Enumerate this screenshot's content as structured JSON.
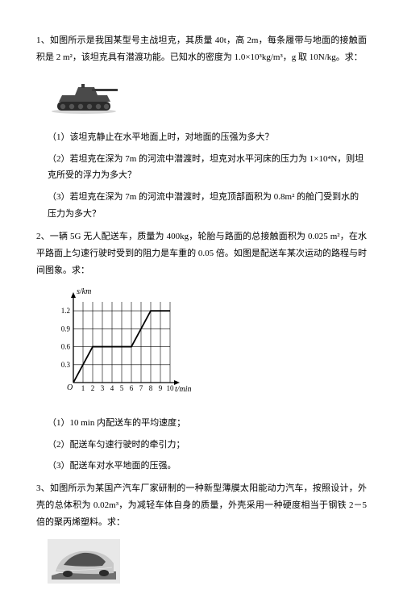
{
  "q1": {
    "intro": "1、如图所示是我国某型号主战坦克，其质量 40t，高 2m，每条履带与地面的接触面积是 2 m²，该坦克具有潜渡功能。已知水的密度为 1.0×10³kg/m³，g 取 10N/kg。求：",
    "sub1": "（1）该坦克静止在水平地面上时，对地面的压强为多大？",
    "sub2": "（2）若坦克在深为 7m 的河流中潜渡时，坦克对水平河床的压力为 1×10⁴N，则坦克所受的浮力为多大？",
    "sub3": "（3）若坦克在深为 7m 的河流中潜渡时，坦克顶部面积为 0.8m² 的舱门受到水的压力为多大？"
  },
  "q2": {
    "intro": "2、一辆 5G 无人配送车，质量为 400kg，轮胎与路面的总接触面积为 0.025 m²，在水平路面上匀速行驶时受到的阻力是车重的 0.05 倍。如图是配送车某次运动的路程与时间图象。求：",
    "sub1": "（1）10 min 内配送车的平均速度；",
    "sub2": "（2）配送车匀速行驶时的牵引力；",
    "sub3": "（3）配送车对水平地面的压强。"
  },
  "q3": {
    "intro": "3、如图所示为某国产汽车厂家研制的一种新型薄膜太阳能动力汽车，按照设计，外壳的总体积为 0.02m³，为减轻车体自身的质量，外壳采用一种硬度相当于钢铁 2－5 倍的聚丙烯塑料。求："
  },
  "chart": {
    "ylabel": "s/km",
    "xlabel": "t/min",
    "xticks": [
      "1",
      "2",
      "3",
      "4",
      "5",
      "6",
      "7",
      "8",
      "9",
      "10"
    ],
    "yticks": [
      "0.3",
      "0.6",
      "0.9",
      "1.2"
    ],
    "xmax": 10,
    "ymax": 1.35,
    "points": [
      [
        0,
        0
      ],
      [
        2,
        0.6
      ],
      [
        6,
        0.6
      ],
      [
        8,
        1.2
      ],
      [
        10,
        1.2
      ]
    ],
    "grid_color": "#000000",
    "line_color": "#000000",
    "bg_color": "#ffffff",
    "axis_fontsize": 9
  },
  "tank": {
    "body_color": "#4a4a4a",
    "track_color": "#2a2a2a"
  },
  "car": {
    "body_color": "#c8c8c8",
    "shadow_color": "#707070"
  }
}
